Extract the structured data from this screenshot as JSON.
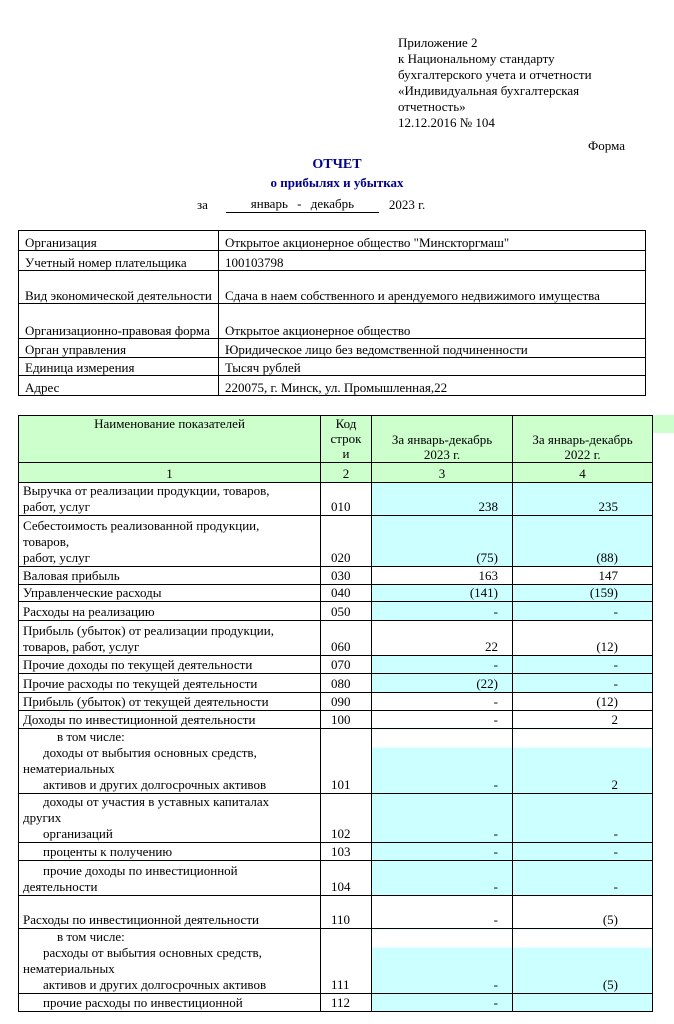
{
  "appendix": [
    "Приложение 2",
    "к Национальному стандарту",
    "бухгалтерского учета и отчетности",
    "«Индивидуальная бухгалтерская",
    "отчетность»",
    "12.12.2016 № 104"
  ],
  "form_label": "Форма",
  "title": "ОТЧЕТ",
  "subtitle": "о прибылях и убытках",
  "period": {
    "prefix": "за",
    "range": "январь - декабрь",
    "year": "2023 г."
  },
  "info": [
    {
      "label": "Организация",
      "value": "Открытое акционерное общество \"Минскторгмаш\""
    },
    {
      "label": "Учетный номер плательщика",
      "value": "100103798"
    },
    {
      "label": "Вид экономической деятельности",
      "value": "Сдача в наем  собственного и арендуемого недвижимого имущества"
    },
    {
      "label": "Организационно-правовая форма",
      "value": "Открытое акционерное общество"
    },
    {
      "label": "Орган управления",
      "value": "Юридическое лицо без ведомственной подчиненности"
    },
    {
      "label": "Единица измерения",
      "value": "Тысяч рублей"
    },
    {
      "label": "Адрес",
      "value": "220075, г. Минск, ул. Промышленная,22"
    }
  ],
  "table": {
    "headers": [
      "Наименование показателей",
      "Код строки",
      "За январь-декабрь 2023 г.",
      "За январь-декабрь 2022 г."
    ],
    "col_numbers": [
      "1",
      "2",
      "3",
      "4"
    ],
    "colors": {
      "header": "#ccffcc",
      "input": "#ccffff"
    },
    "rows": [
      {
        "name": [
          "Выручка от реализации продукции, товаров,",
          "работ, услуг"
        ],
        "code": "010",
        "v2023": "238",
        "v2022": "235",
        "shade": "cyan"
      },
      {
        "name": [
          "Себестоимость реализованной продукции,",
          "товаров,",
          "работ, услуг"
        ],
        "code": "020",
        "v2023": "(75)",
        "v2022": "(88)",
        "shade": "cyan"
      },
      {
        "name": [
          "Валовая прибыль"
        ],
        "code": "030",
        "v2023": "163",
        "v2022": "147",
        "shade": "white"
      },
      {
        "name": [
          "Управленческие расходы"
        ],
        "code": "040",
        "v2023": "(141)",
        "v2022": "(159)",
        "shade": "cyan"
      },
      {
        "name": [
          "Расходы на реализацию"
        ],
        "code": "050",
        "v2023": "-",
        "v2022": "-",
        "shade": "cyan"
      },
      {
        "name": [
          "Прибыль (убыток) от реализации продукции,",
          "товаров, работ, услуг"
        ],
        "code": "060",
        "v2023": "22",
        "v2022": "(12)",
        "shade": "white"
      },
      {
        "name": [
          "Прочие доходы по текущей деятельности"
        ],
        "code": "070",
        "v2023": "-",
        "v2022": "-",
        "shade": "cyan"
      },
      {
        "name": [
          "Прочие расходы по текущей деятельности"
        ],
        "code": "080",
        "v2023": "(22)",
        "v2022": "-",
        "shade": "cyan"
      },
      {
        "name": [
          "Прибыль (убыток) от текущей деятельности"
        ],
        "code": "090",
        "v2023": "-",
        "v2022": "(12)",
        "shade": "white"
      },
      {
        "name": [
          "Доходы по инвестиционной деятельности"
        ],
        "code": "100",
        "v2023": "-",
        "v2022": "2",
        "shade": "white"
      },
      {
        "name": [
          "в том числе:",
          "доходы от выбытия основных средств,",
          "нематериальных",
          "активов и других долгосрочных активов"
        ],
        "code": "101",
        "v2023": "-",
        "v2022": "2",
        "shade": "partial"
      },
      {
        "name": [
          "доходы от участия в уставных капиталах",
          "других",
          "организаций"
        ],
        "code": "102",
        "v2023": "-",
        "v2022": "-",
        "shade": "cyan"
      },
      {
        "name": [
          "проценты к получению"
        ],
        "code": "103",
        "v2023": "-",
        "v2022": "-",
        "shade": "cyan"
      },
      {
        "name": [
          "прочие доходы по инвестиционной",
          "деятельности"
        ],
        "code": "104",
        "v2023": "-",
        "v2022": "-",
        "shade": "cyan"
      },
      {
        "name": [
          "",
          "Расходы по инвестиционной деятельности"
        ],
        "code": "110",
        "v2023": "-",
        "v2022": "(5)",
        "shade": "white"
      },
      {
        "name": [
          "в том числе:",
          "расходы от выбытия основных средств,",
          "нематериальных",
          "активов и других долгосрочных активов"
        ],
        "code": "111",
        "v2023": "-",
        "v2022": "(5)",
        "shade": "partial"
      },
      {
        "name": [
          "прочие расходы по инвестиционной"
        ],
        "code": "112",
        "v2023": "-",
        "v2022": "",
        "shade": "cyan"
      }
    ]
  }
}
